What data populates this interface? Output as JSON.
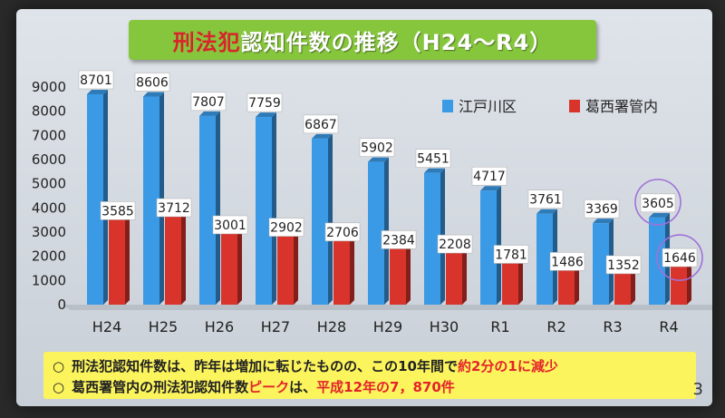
{
  "title": {
    "part1": "刑法犯",
    "part2": "認知件数の推移（H24～R4）"
  },
  "page_number": "3",
  "notes": {
    "line1": {
      "bullet": "○",
      "text_before": "刑法犯認知件数は、昨年は増加に転じたものの、この10年間で",
      "highlight": "約2分の1に減少"
    },
    "line2": {
      "bullet": "○",
      "text_before": "葛西署管内の刑法犯認知件数",
      "highlight1": "ピーク",
      "text_middle": "は、",
      "highlight2": "平成12年の7，870件"
    }
  },
  "colors": {
    "series1": "#3b9ae6",
    "series2": "#d9342b",
    "title_bg": "#86c63c",
    "highlight_circle": "#a070d8"
  },
  "chart_data": {
    "type": "bar",
    "categories": [
      "H24",
      "H25",
      "H26",
      "H27",
      "H28",
      "H29",
      "H30",
      "R1",
      "R2",
      "R3",
      "R4"
    ],
    "series": [
      {
        "name": "江戸川区",
        "values": [
          8701,
          8606,
          7807,
          7759,
          6867,
          5902,
          5451,
          4717,
          3761,
          3369,
          3605
        ]
      },
      {
        "name": "葛西署管内",
        "values": [
          3585,
          3712,
          3001,
          2902,
          2706,
          2384,
          2208,
          1781,
          1486,
          1352,
          1646
        ]
      }
    ],
    "yticks": [
      "0",
      "1000",
      "2000",
      "3000",
      "4000",
      "5000",
      "6000",
      "7000",
      "8000",
      "9000"
    ],
    "ylim": [
      0,
      9000
    ],
    "legend_position": "top-right",
    "circled_category": "R4"
  }
}
